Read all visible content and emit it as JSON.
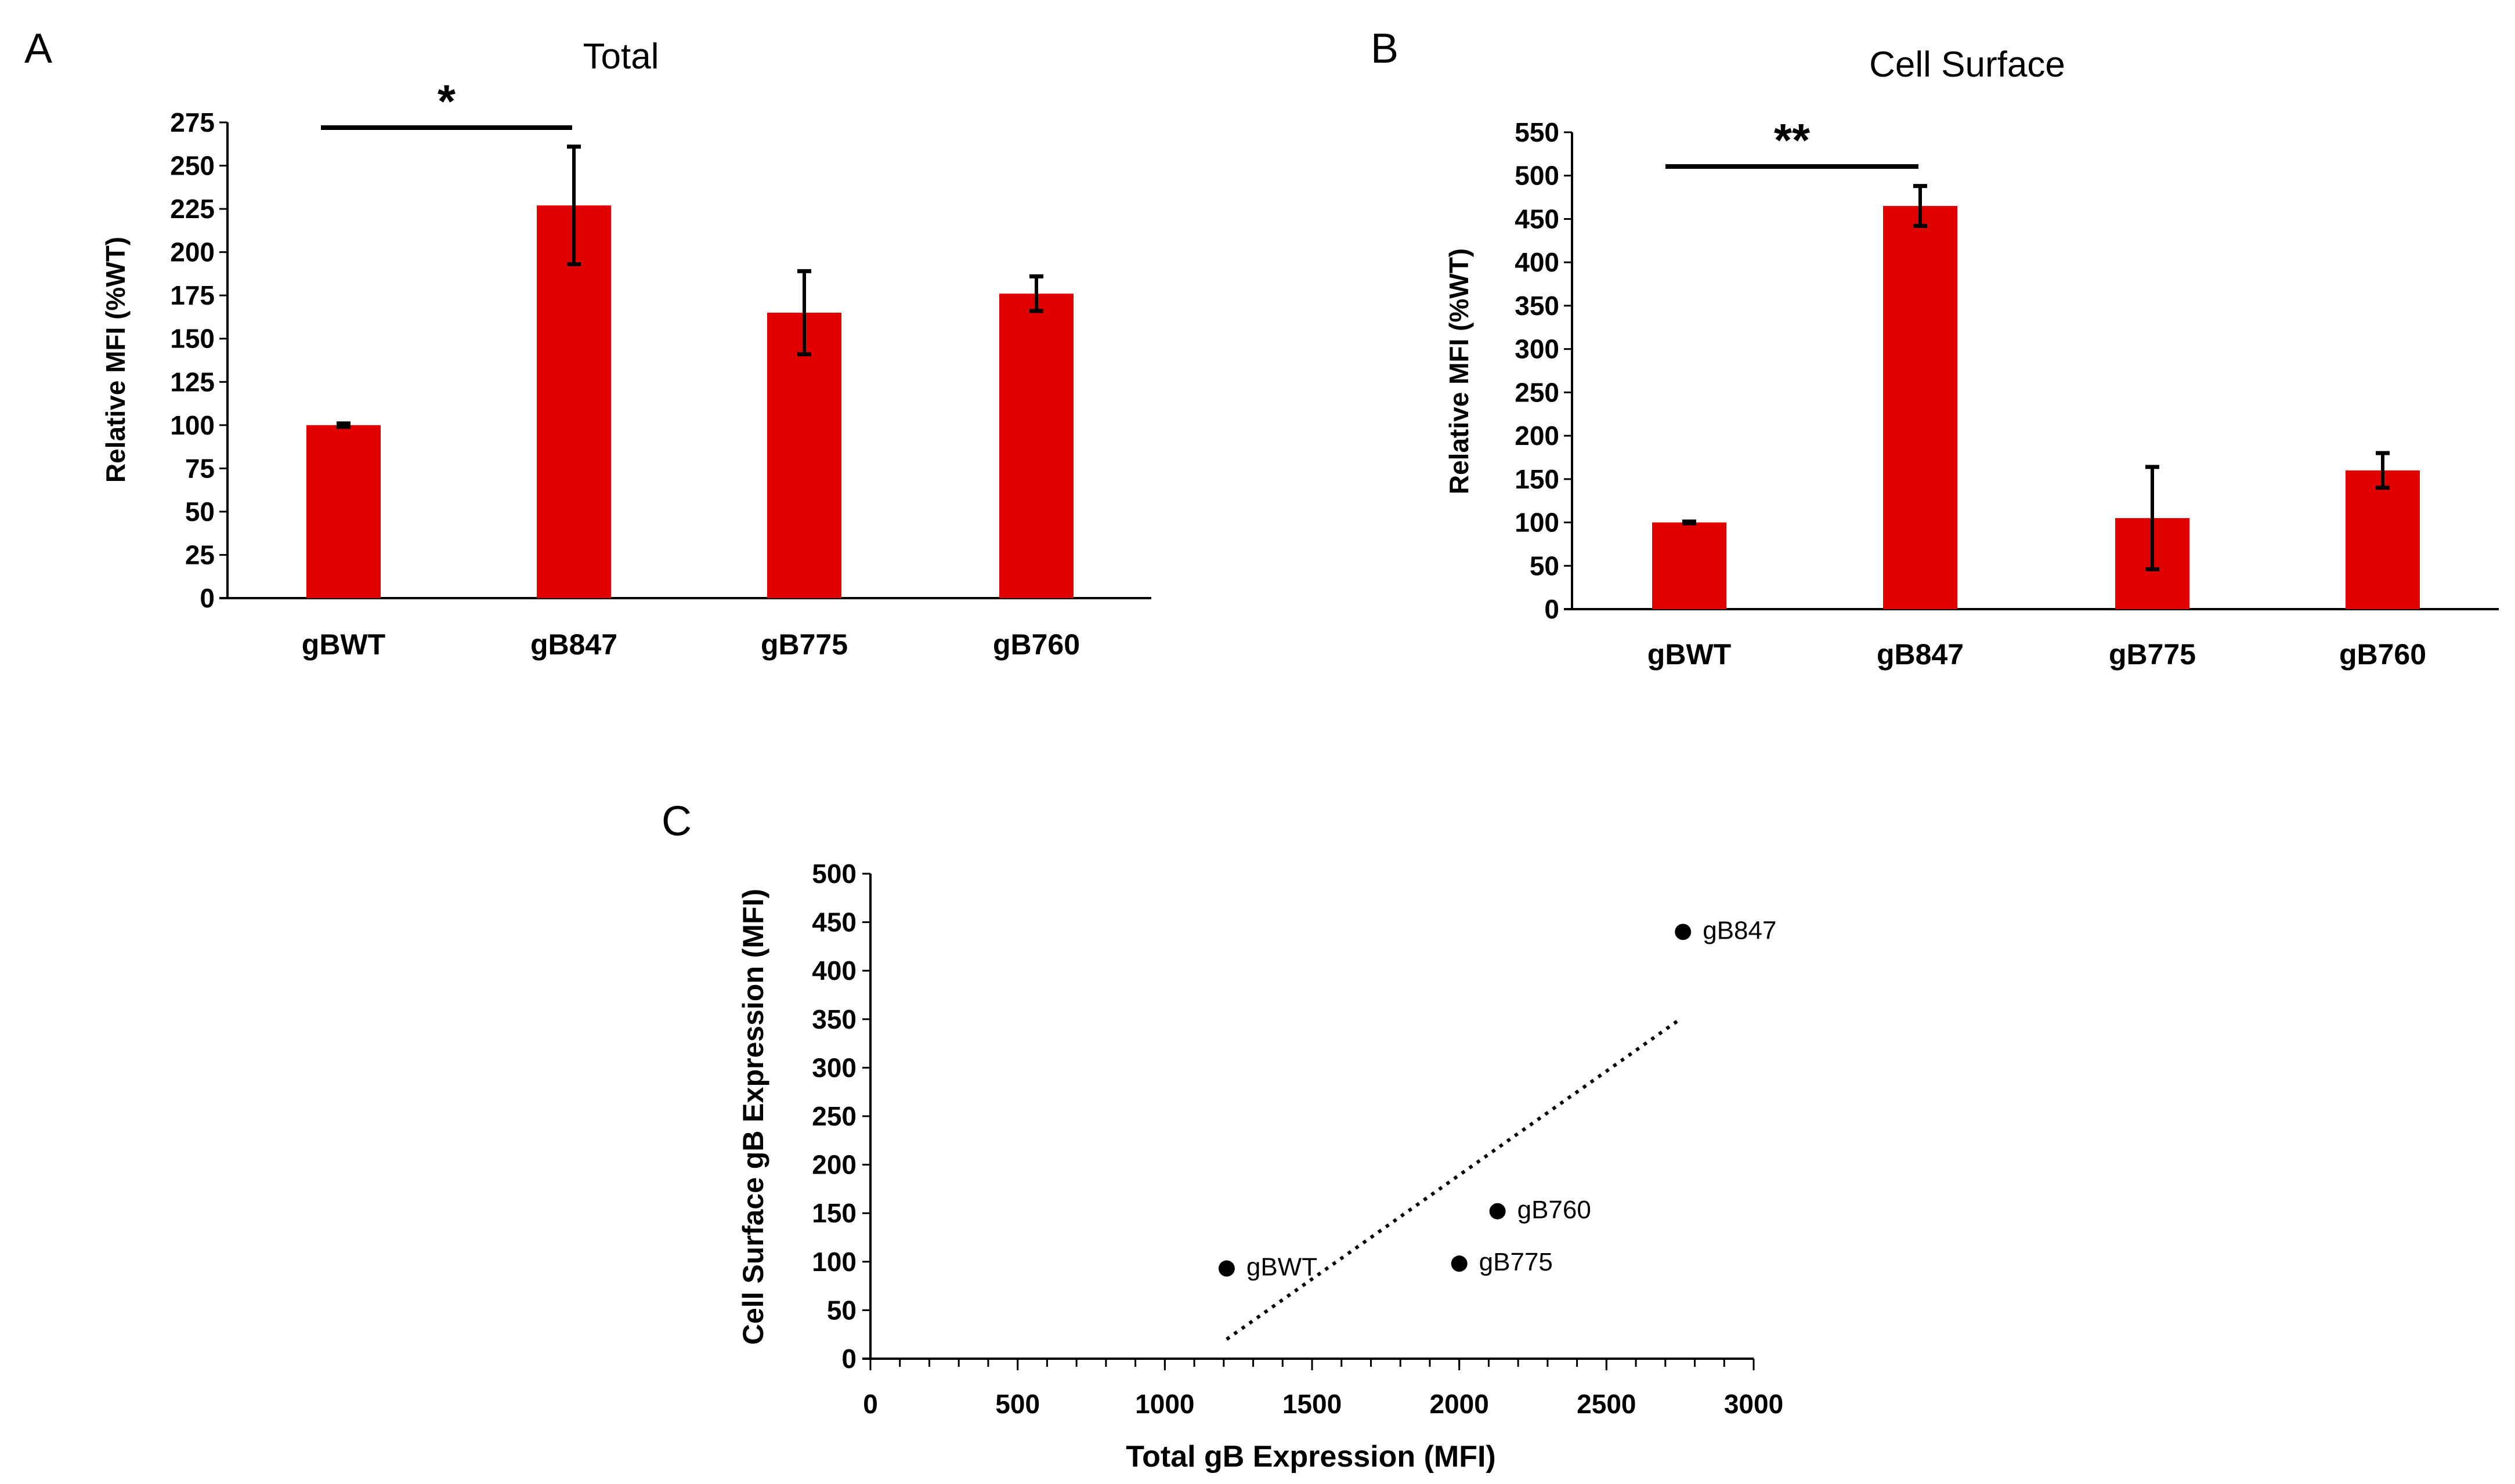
{
  "colors": {
    "bar": "#e00000",
    "axis": "#000000"
  },
  "chart_data": [
    {
      "type": "bar",
      "panel_label": "A",
      "title": "Total",
      "ylabel": "Relative MFI (%WT)",
      "xlabel": "",
      "categories": [
        "gBWT",
        "gB847",
        "gB775",
        "gB760"
      ],
      "values": [
        100,
        227,
        165,
        176
      ],
      "errors": [
        1,
        34,
        24,
        10
      ],
      "ylim": [
        0,
        275
      ],
      "yticks": [
        0,
        25,
        50,
        75,
        100,
        125,
        150,
        175,
        200,
        225,
        250,
        275
      ],
      "significance": {
        "from": "gBWT",
        "to": "gB847",
        "label": "*"
      },
      "grid": false
    },
    {
      "type": "bar",
      "panel_label": "B",
      "title": "Cell Surface",
      "ylabel": "Relative MFI (%WT)",
      "xlabel": "",
      "categories": [
        "gBWT",
        "gB847",
        "gB775",
        "gB760"
      ],
      "values": [
        100,
        465,
        105,
        160
      ],
      "errors": [
        1,
        23,
        59,
        20
      ],
      "ylim": [
        0,
        550
      ],
      "yticks": [
        0,
        50,
        100,
        150,
        200,
        250,
        300,
        350,
        400,
        450,
        500,
        550
      ],
      "significance": {
        "from": "gBWT",
        "to": "gB847",
        "label": "**"
      },
      "grid": false
    },
    {
      "type": "scatter",
      "panel_label": "C",
      "title": "",
      "xlabel": "Total gB Expression (MFI)",
      "ylabel": "Cell Surface gB Expression (MFI)",
      "points": [
        {
          "label": "gBWT",
          "x": 1210,
          "y": 93
        },
        {
          "label": "gB847",
          "x": 2760,
          "y": 440
        },
        {
          "label": "gB760",
          "x": 2130,
          "y": 152
        },
        {
          "label": "gB775",
          "x": 2000,
          "y": 98
        }
      ],
      "trendline": {
        "style": "dotted",
        "x": [
          1210,
          2750
        ],
        "y": [
          20,
          350
        ]
      },
      "xlim": [
        0,
        3000
      ],
      "ylim": [
        0,
        500
      ],
      "xticks": [
        0,
        500,
        1000,
        1500,
        2000,
        2500,
        3000
      ],
      "yticks": [
        0,
        50,
        100,
        150,
        200,
        250,
        300,
        350,
        400,
        450,
        500
      ],
      "grid": false
    }
  ]
}
